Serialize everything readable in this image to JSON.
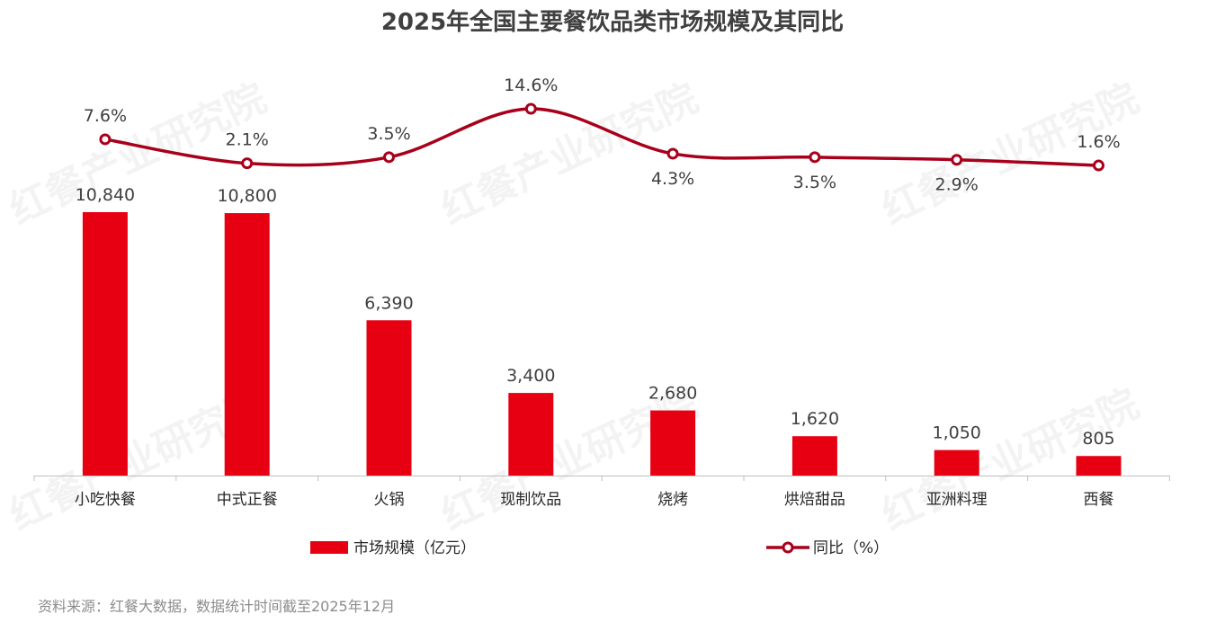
{
  "chart_data": {
    "type": "bar+line",
    "title": "2025年全国主要餐饮品类市场规模及其同比",
    "categories": [
      "小吃快餐",
      "中式正餐",
      "火锅",
      "现制饮品",
      "烧烤",
      "烘焙甜品",
      "亚洲料理",
      "西餐"
    ],
    "series": [
      {
        "name": "市场规模（亿元）",
        "type": "bar",
        "values": [
          10840,
          10800,
          6390,
          3400,
          2680,
          1620,
          1050,
          805
        ],
        "labels": [
          "10,840",
          "10,800",
          "6,390",
          "3,400",
          "2,680",
          "1,620",
          "1,050",
          "805"
        ],
        "color": "#e60012"
      },
      {
        "name": "同比（%）",
        "type": "line",
        "values": [
          7.6,
          2.1,
          3.5,
          14.6,
          4.3,
          3.5,
          2.9,
          1.6
        ],
        "labels": [
          "7.6%",
          "2.1%",
          "3.5%",
          "14.6%",
          "4.3%",
          "3.5%",
          "2.9%",
          "1.6%"
        ],
        "color": "#a8001a"
      }
    ],
    "legend": "bottom",
    "grid": false
  },
  "source": "资料来源：红餐大数据，数据统计时间截至2025年12月",
  "watermark": "红餐产业研究院"
}
